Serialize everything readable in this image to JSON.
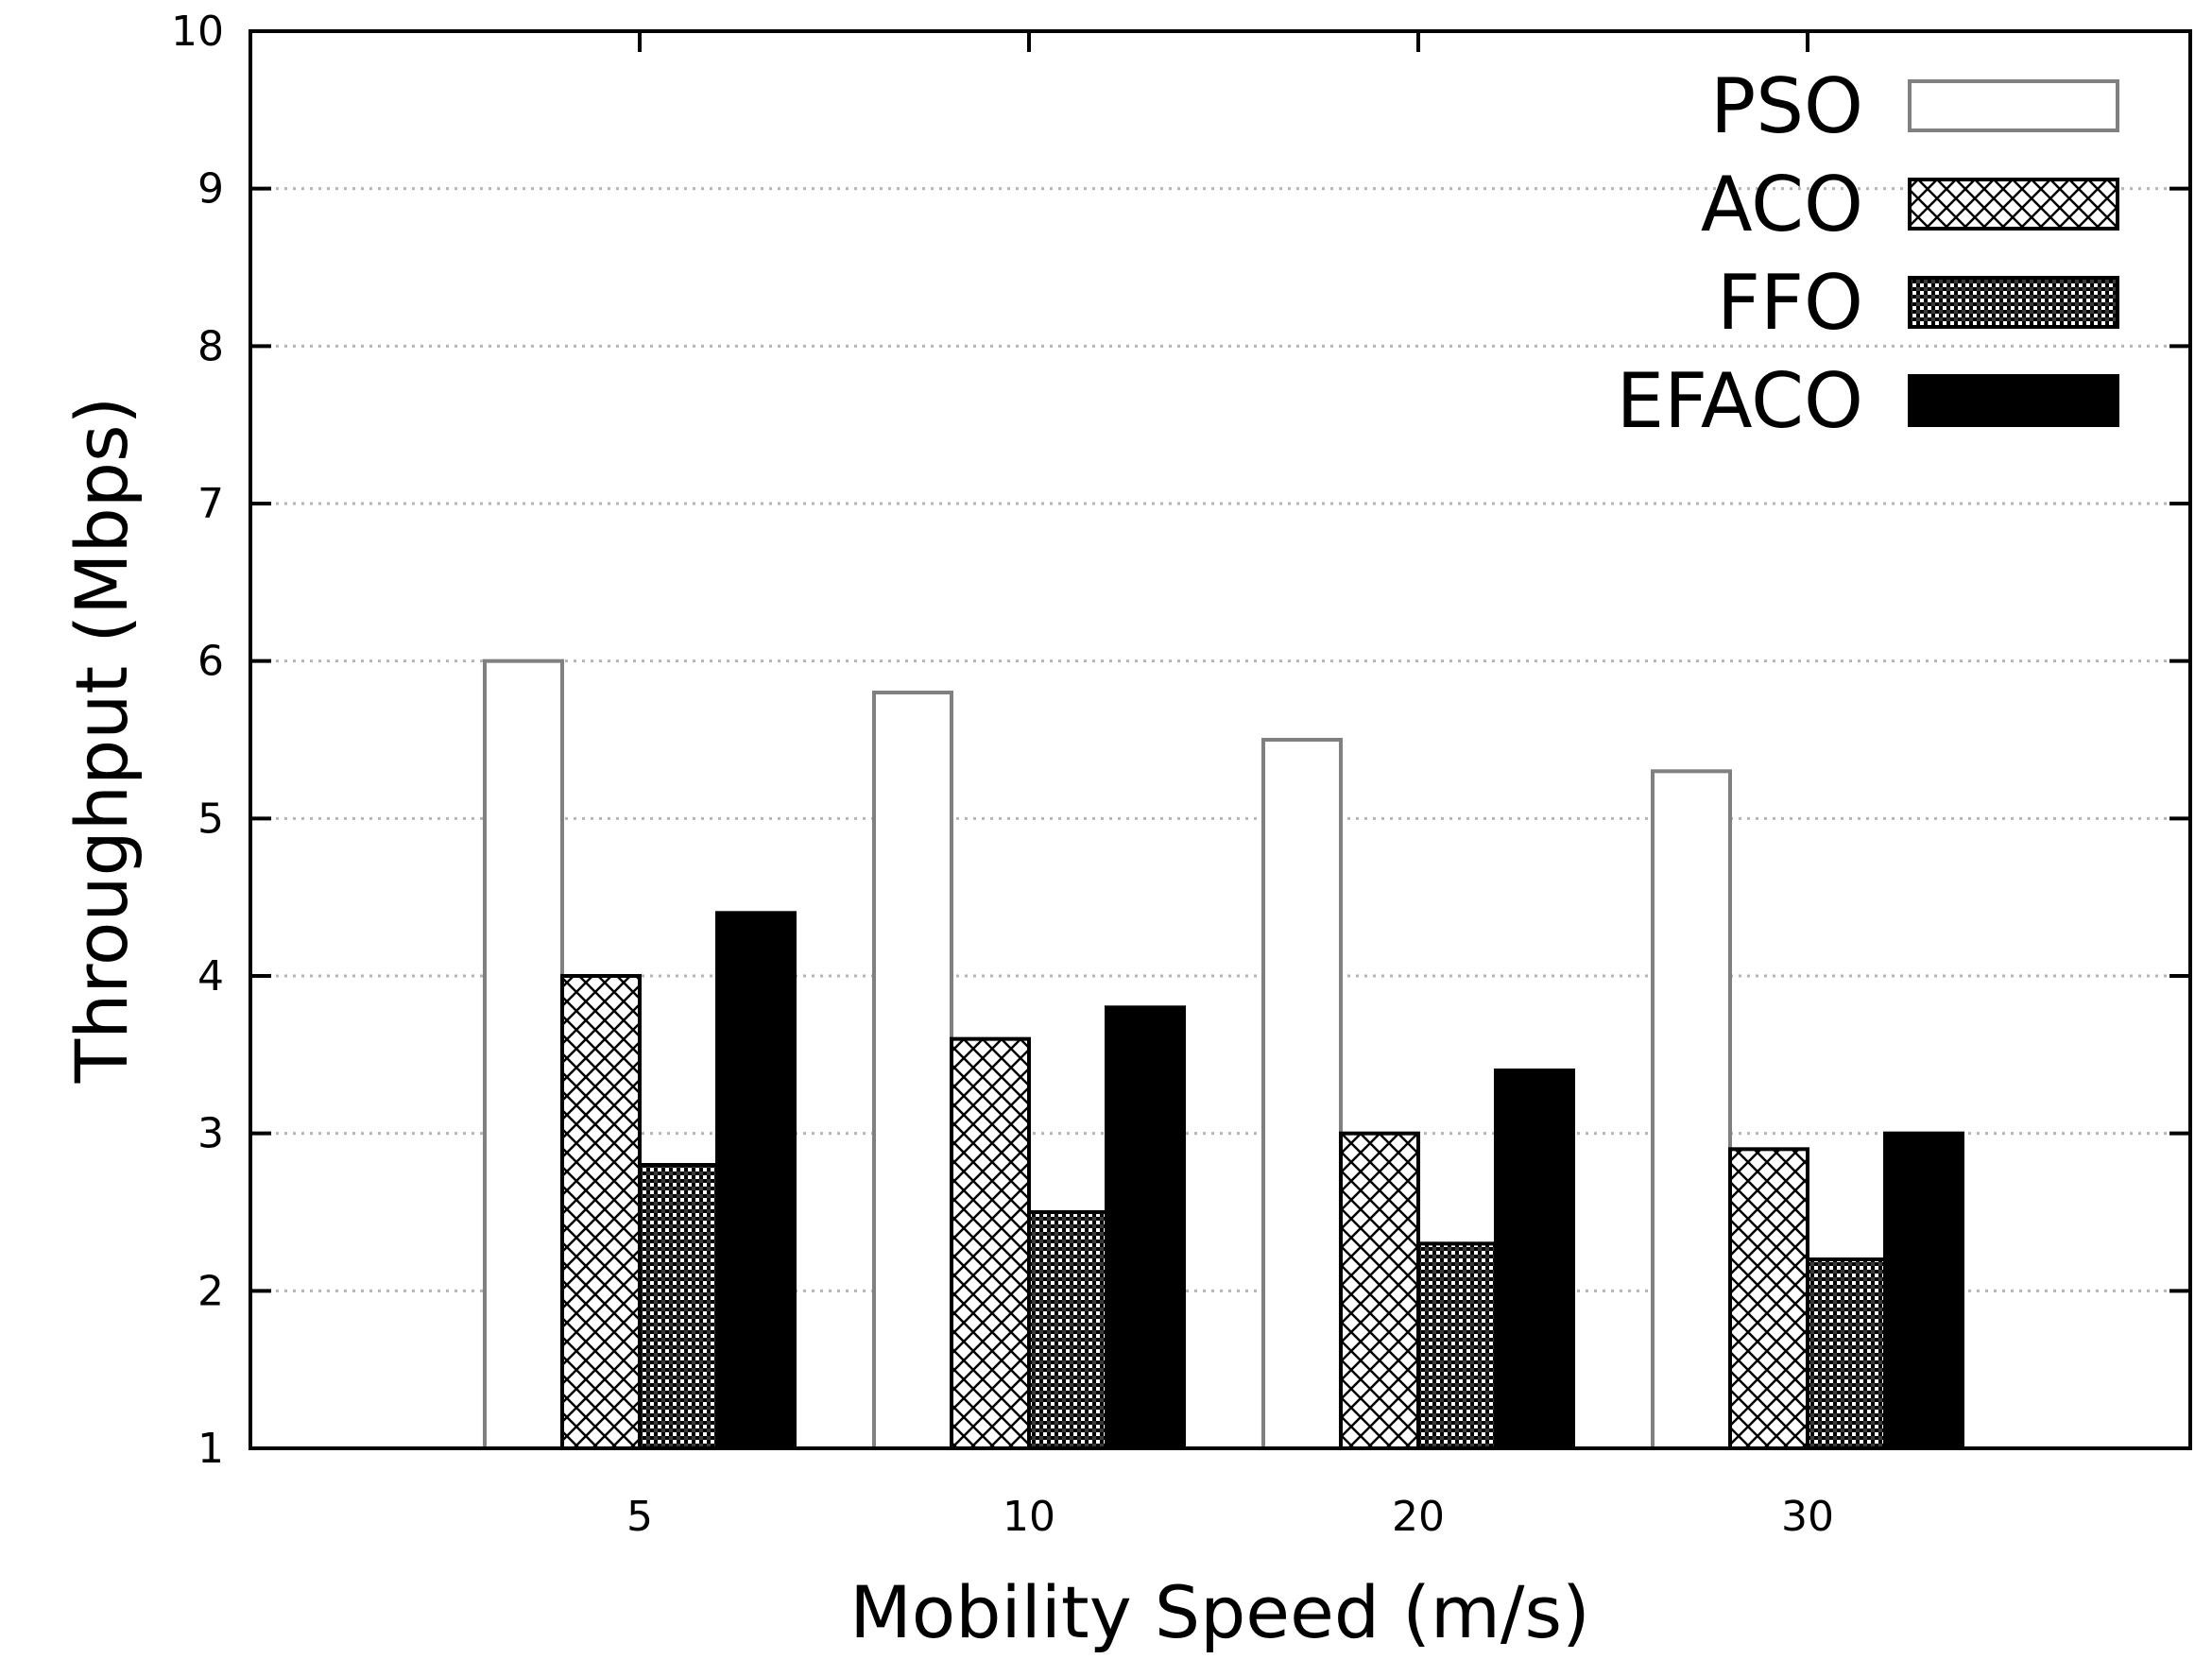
{
  "chart_data": {
    "type": "bar",
    "title": "",
    "xlabel": "Mobility Speed (m/s)",
    "ylabel": "Throughput (Mbps)",
    "ylim": [
      1,
      10
    ],
    "yticks": [
      "1",
      "2",
      "3",
      "4",
      "5",
      "6",
      "7",
      "8",
      "9",
      "10"
    ],
    "grid": "horizontal, dotted",
    "legend_position": "top-right",
    "categories": [
      "5",
      "10",
      "20",
      "30"
    ],
    "series": [
      {
        "name": "PSO",
        "values": [
          6.0,
          5.8,
          5.5,
          5.3
        ],
        "pattern": "white"
      },
      {
        "name": "ACO",
        "values": [
          4.0,
          3.6,
          3.0,
          2.9
        ],
        "pattern": "crosshatch"
      },
      {
        "name": "FFO",
        "values": [
          2.8,
          2.5,
          2.3,
          2.2
        ],
        "pattern": "dense-checker"
      },
      {
        "name": "EFACO",
        "values": [
          4.4,
          3.8,
          3.4,
          3.0
        ],
        "pattern": "black"
      }
    ],
    "colors": {
      "PSO_border": "#808080",
      "bar_border": "#000000"
    }
  }
}
